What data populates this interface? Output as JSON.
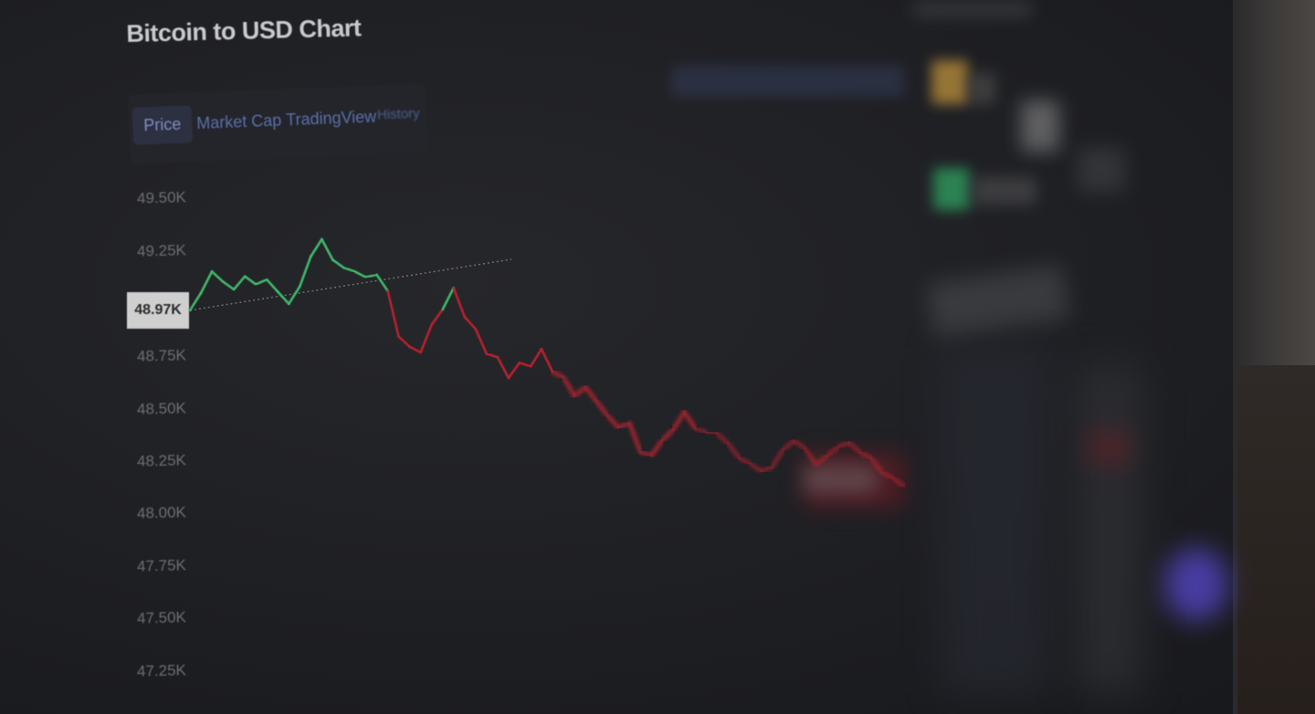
{
  "page": {
    "title": "Bitcoin to USD Chart"
  },
  "tabs": [
    {
      "label": "Price",
      "active": true
    },
    {
      "label": "Market Cap",
      "active": false
    },
    {
      "label": "TradingView",
      "active": false
    },
    {
      "label": "History",
      "active": false
    }
  ],
  "chart": {
    "current_price_label": "48.97K",
    "y_ticks": [
      "49.50K",
      "49.25K",
      "48.75K",
      "48.50K",
      "48.25K",
      "48.00K",
      "47.75K",
      "47.50K",
      "47.25K"
    ],
    "colors": {
      "up": "#3fb86a",
      "down": "#b5242f",
      "baseline": "#8a8c90"
    }
  },
  "chart_data": {
    "type": "line",
    "title": "Bitcoin to USD Chart",
    "ylim": [
      47.25,
      49.5
    ],
    "baseline": 48.97,
    "series": [
      {
        "values": [
          48.97,
          49.05,
          49.15,
          49.1,
          49.06,
          49.12,
          49.08,
          49.1,
          49.04,
          48.98,
          49.06,
          49.2,
          49.28,
          49.18,
          49.14,
          49.12,
          49.09,
          49.1,
          49.02,
          48.8,
          48.75,
          48.72,
          48.85,
          48.92,
          49.02,
          48.88,
          48.82,
          48.7,
          48.68,
          48.58,
          48.65,
          48.63,
          48.71,
          48.6,
          48.57,
          48.48,
          48.52,
          48.45,
          48.38,
          48.32,
          48.34,
          48.2,
          48.18,
          48.25,
          48.3,
          48.38,
          48.3,
          48.28,
          48.27,
          48.22,
          48.15,
          48.12,
          48.08,
          48.1,
          48.18,
          48.22,
          48.18,
          48.1,
          48.14,
          48.18,
          48.2,
          48.15,
          48.12,
          48.05,
          48.02,
          47.98
        ]
      }
    ]
  }
}
